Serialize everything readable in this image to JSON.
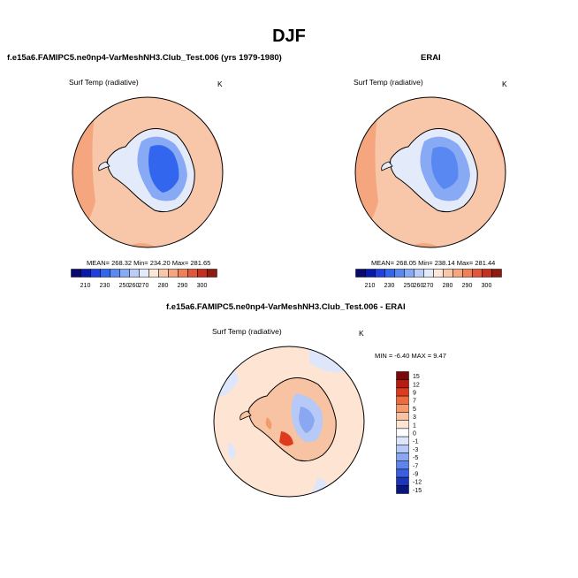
{
  "page_title": "DJF",
  "panels": [
    {
      "title": "f.e15a6.FAMIPC5.ne0np4-VarMeshNH3.Club_Test.006 (yrs 1979-1980)",
      "variable": "Surf Temp (radiative)",
      "units": "K",
      "stats": "MEAN= 268.32   Min= 234.20   Max= 281.65",
      "colorbar_labels": [
        "210",
        "230",
        "250",
        "260",
        "270",
        "280",
        "290",
        "300"
      ]
    },
    {
      "title": "ERAI",
      "variable": "Surf Temp (radiative)",
      "units": "K",
      "stats": "MEAN= 268.05   Min= 238.14   Max= 281.44",
      "colorbar_labels": [
        "210",
        "230",
        "250",
        "260",
        "270",
        "280",
        "290",
        "300"
      ]
    },
    {
      "title": "f.e15a6.FAMIPC5.ne0np4-VarMeshNH3.Club_Test.006 - ERAI",
      "variable": "Surf Temp (radiative)",
      "units": "K",
      "stats": "MIN =  -6.40 MAX =   9.47",
      "colorbar_labels": [
        "15",
        "12",
        "9",
        "7",
        "5",
        "3",
        "1",
        "0",
        "-1",
        "-3",
        "-5",
        "-7",
        "-9",
        "-12",
        "-15"
      ]
    }
  ],
  "colors": {
    "abs_palette": [
      "#0a0a6e",
      "#0a1aa8",
      "#1f3fe0",
      "#3366ee",
      "#5a88f2",
      "#88aaf5",
      "#b9cdf8",
      "#e3ebfb",
      "#fde6d6",
      "#f8c6a8",
      "#f5a67f",
      "#ef8159",
      "#e2573a",
      "#c4301f",
      "#8e1a10"
    ],
    "diff_palette": [
      "#7a0a0a",
      "#b71c10",
      "#dd3a1e",
      "#ef6a3c",
      "#f59a6c",
      "#f8c3a2",
      "#fde4d3",
      "#ffffff",
      "#dde6fb",
      "#b6c9f7",
      "#8aa7f2",
      "#5f84ec",
      "#3a5fe0",
      "#1b36b8",
      "#0a1680"
    ]
  }
}
